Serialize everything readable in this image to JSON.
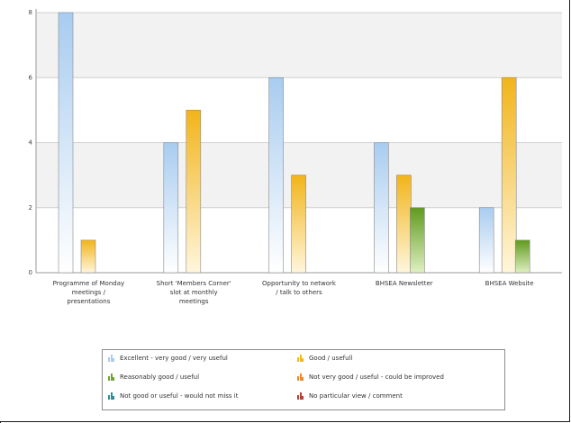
{
  "chart_data": {
    "type": "bar",
    "categories": [
      [
        "Programme of Monday",
        "meetings /",
        "presentations"
      ],
      [
        "Short 'Members Corner'",
        "slot at monthly",
        "meetings"
      ],
      [
        "Opportunity to network",
        "/ talk to others"
      ],
      [
        "BHSEA Newsletter"
      ],
      [
        "BHSEA Website"
      ]
    ],
    "series": [
      {
        "name": "Excellent -  very good / very useful",
        "color": "#a9cdf0",
        "values": [
          8,
          4,
          6,
          4,
          2
        ]
      },
      {
        "name": "Good / usefull",
        "color": "#f2b820",
        "values": [
          1,
          5,
          3,
          3,
          6
        ]
      },
      {
        "name": "Reasonably good / useful",
        "color": "#6fa52a",
        "values": [
          0,
          0,
          0,
          2,
          1
        ]
      },
      {
        "name": "Not very good / useful - could be improved",
        "color": "#f08a2c",
        "values": [
          0,
          0,
          0,
          0,
          0
        ]
      },
      {
        "name": "Not good or useful - would not miss it",
        "color": "#2a8f96",
        "values": [
          0,
          0,
          0,
          0,
          0
        ]
      },
      {
        "name": "No particular view / comment",
        "color": "#b2413a",
        "values": [
          0,
          0,
          0,
          0,
          0
        ]
      }
    ],
    "y_ticks": [
      0,
      2,
      4,
      6,
      8
    ],
    "ylim": [
      0,
      8
    ],
    "grid": true,
    "legend_position": "bottom"
  }
}
